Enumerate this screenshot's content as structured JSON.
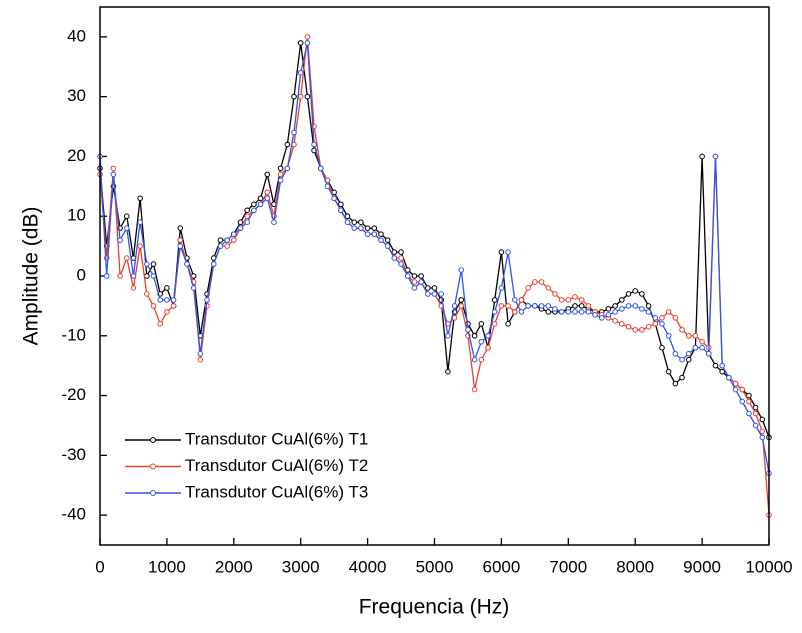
{
  "chart_data": {
    "type": "line",
    "xlabel": "Frequencia (Hz)",
    "ylabel": "Amplitude (dB)",
    "xlim": [
      0,
      10000
    ],
    "ylim": [
      -45,
      45
    ],
    "xticks": [
      0,
      1000,
      2000,
      3000,
      4000,
      5000,
      6000,
      7000,
      8000,
      9000,
      10000
    ],
    "yticks": [
      -40,
      -30,
      -20,
      -10,
      0,
      10,
      20,
      30,
      40
    ],
    "legend": "lower left",
    "markers": true,
    "x": [
      0,
      100,
      200,
      300,
      400,
      500,
      600,
      700,
      800,
      900,
      1000,
      1100,
      1200,
      1300,
      1400,
      1500,
      1600,
      1700,
      1800,
      1900,
      2000,
      2100,
      2200,
      2300,
      2400,
      2500,
      2600,
      2700,
      2800,
      2900,
      3000,
      3100,
      3200,
      3300,
      3400,
      3500,
      3600,
      3700,
      3800,
      3900,
      4000,
      4100,
      4200,
      4300,
      4400,
      4500,
      4600,
      4700,
      4800,
      4900,
      5000,
      5100,
      5200,
      5300,
      5400,
      5500,
      5600,
      5700,
      5800,
      5900,
      6000,
      6100,
      6200,
      6300,
      6400,
      6500,
      6600,
      6700,
      6800,
      6900,
      7000,
      7100,
      7200,
      7300,
      7400,
      7500,
      7600,
      7700,
      7800,
      7900,
      8000,
      8100,
      8200,
      8300,
      8400,
      8500,
      8600,
      8700,
      8800,
      8900,
      9000,
      9100,
      9200,
      9300,
      9400,
      9500,
      9600,
      9700,
      9800,
      9900,
      10000
    ],
    "series": [
      {
        "name": "Transdutor CuAl(6%) T1",
        "color": "#000000",
        "values": [
          18,
          5,
          15,
          8,
          10,
          3,
          13,
          0,
          2,
          -3,
          -2,
          -5,
          8,
          3,
          0,
          -10,
          -3,
          3,
          6,
          6,
          7,
          9,
          11,
          12,
          13,
          17,
          12,
          18,
          22,
          30,
          39,
          30,
          21,
          18,
          16,
          14,
          12,
          10,
          9,
          9,
          8,
          8,
          7,
          6,
          4,
          4,
          1,
          0,
          0,
          -2,
          -2,
          -4,
          -16,
          -6,
          -4,
          -8,
          -10,
          -8,
          -12,
          -4,
          4,
          -8,
          -6,
          -4,
          -5,
          -5,
          -5.5,
          -6,
          -6,
          -6,
          -5.5,
          -5,
          -5,
          -5.5,
          -6,
          -6,
          -5.5,
          -5,
          -4,
          -3,
          -2.5,
          -3,
          -5,
          -8,
          -12,
          -16,
          -18,
          -17,
          -14,
          -12,
          20,
          -13,
          -15,
          -16,
          -17,
          -18,
          -19,
          -20,
          -22,
          -24,
          -27
        ]
      },
      {
        "name": "Transdutor CuAl(6%) T2",
        "color": "#e8412c",
        "values": [
          17,
          3,
          18,
          0,
          3,
          -2,
          5,
          -3,
          -5,
          -8,
          -6,
          -5,
          6,
          2,
          -1,
          -14,
          -5,
          2,
          5,
          5,
          6,
          8,
          10,
          11,
          12,
          14,
          10,
          17,
          18,
          22,
          30,
          40,
          25,
          18,
          16,
          13,
          11,
          9,
          8,
          8,
          7,
          7,
          6,
          5,
          3,
          3,
          0,
          -1,
          -1,
          -3,
          -3,
          -5,
          -8,
          -7,
          -5,
          -10,
          -19,
          -14,
          -12,
          -8,
          -5,
          -5,
          -6,
          -4,
          -2,
          -1,
          -1,
          -2,
          -3,
          -4,
          -4,
          -3.5,
          -4,
          -5,
          -6,
          -6.5,
          -7,
          -7.5,
          -8,
          -8.5,
          -9,
          -9,
          -8.5,
          -8,
          -7,
          -6,
          -7,
          -9,
          -10,
          -10,
          -11,
          -12,
          20,
          -15,
          -17,
          -18,
          -19,
          -21,
          -23,
          -26,
          -40
        ]
      },
      {
        "name": "Transdutor CuAl(6%) T3",
        "color": "#2f56e8",
        "values": [
          20,
          0,
          17,
          6,
          8,
          0,
          9,
          2,
          0,
          -4,
          -4,
          -4,
          5,
          2,
          -2,
          -13,
          -4,
          2,
          5,
          6,
          7,
          8,
          9,
          11,
          12,
          13,
          9,
          16,
          18,
          24,
          34,
          39,
          22,
          18,
          15,
          13,
          11,
          9,
          8,
          8,
          7,
          7,
          6,
          5,
          3,
          2,
          0,
          -2,
          -1,
          -3,
          -3,
          -3,
          -10,
          -5,
          1,
          -9,
          -14,
          -11,
          -10,
          -6,
          -2,
          4,
          -4,
          -6,
          -5,
          -5,
          -5,
          -5,
          -5.5,
          -6,
          -6,
          -6,
          -6,
          -6,
          -6.5,
          -7,
          -6.5,
          -6,
          -5.5,
          -5,
          -5,
          -5.5,
          -6,
          -7,
          -8,
          -10,
          -13,
          -14,
          -13,
          -12,
          -12,
          -13,
          20,
          -15,
          -17,
          -19,
          -21,
          -23,
          -25,
          -27,
          -33
        ]
      }
    ]
  }
}
